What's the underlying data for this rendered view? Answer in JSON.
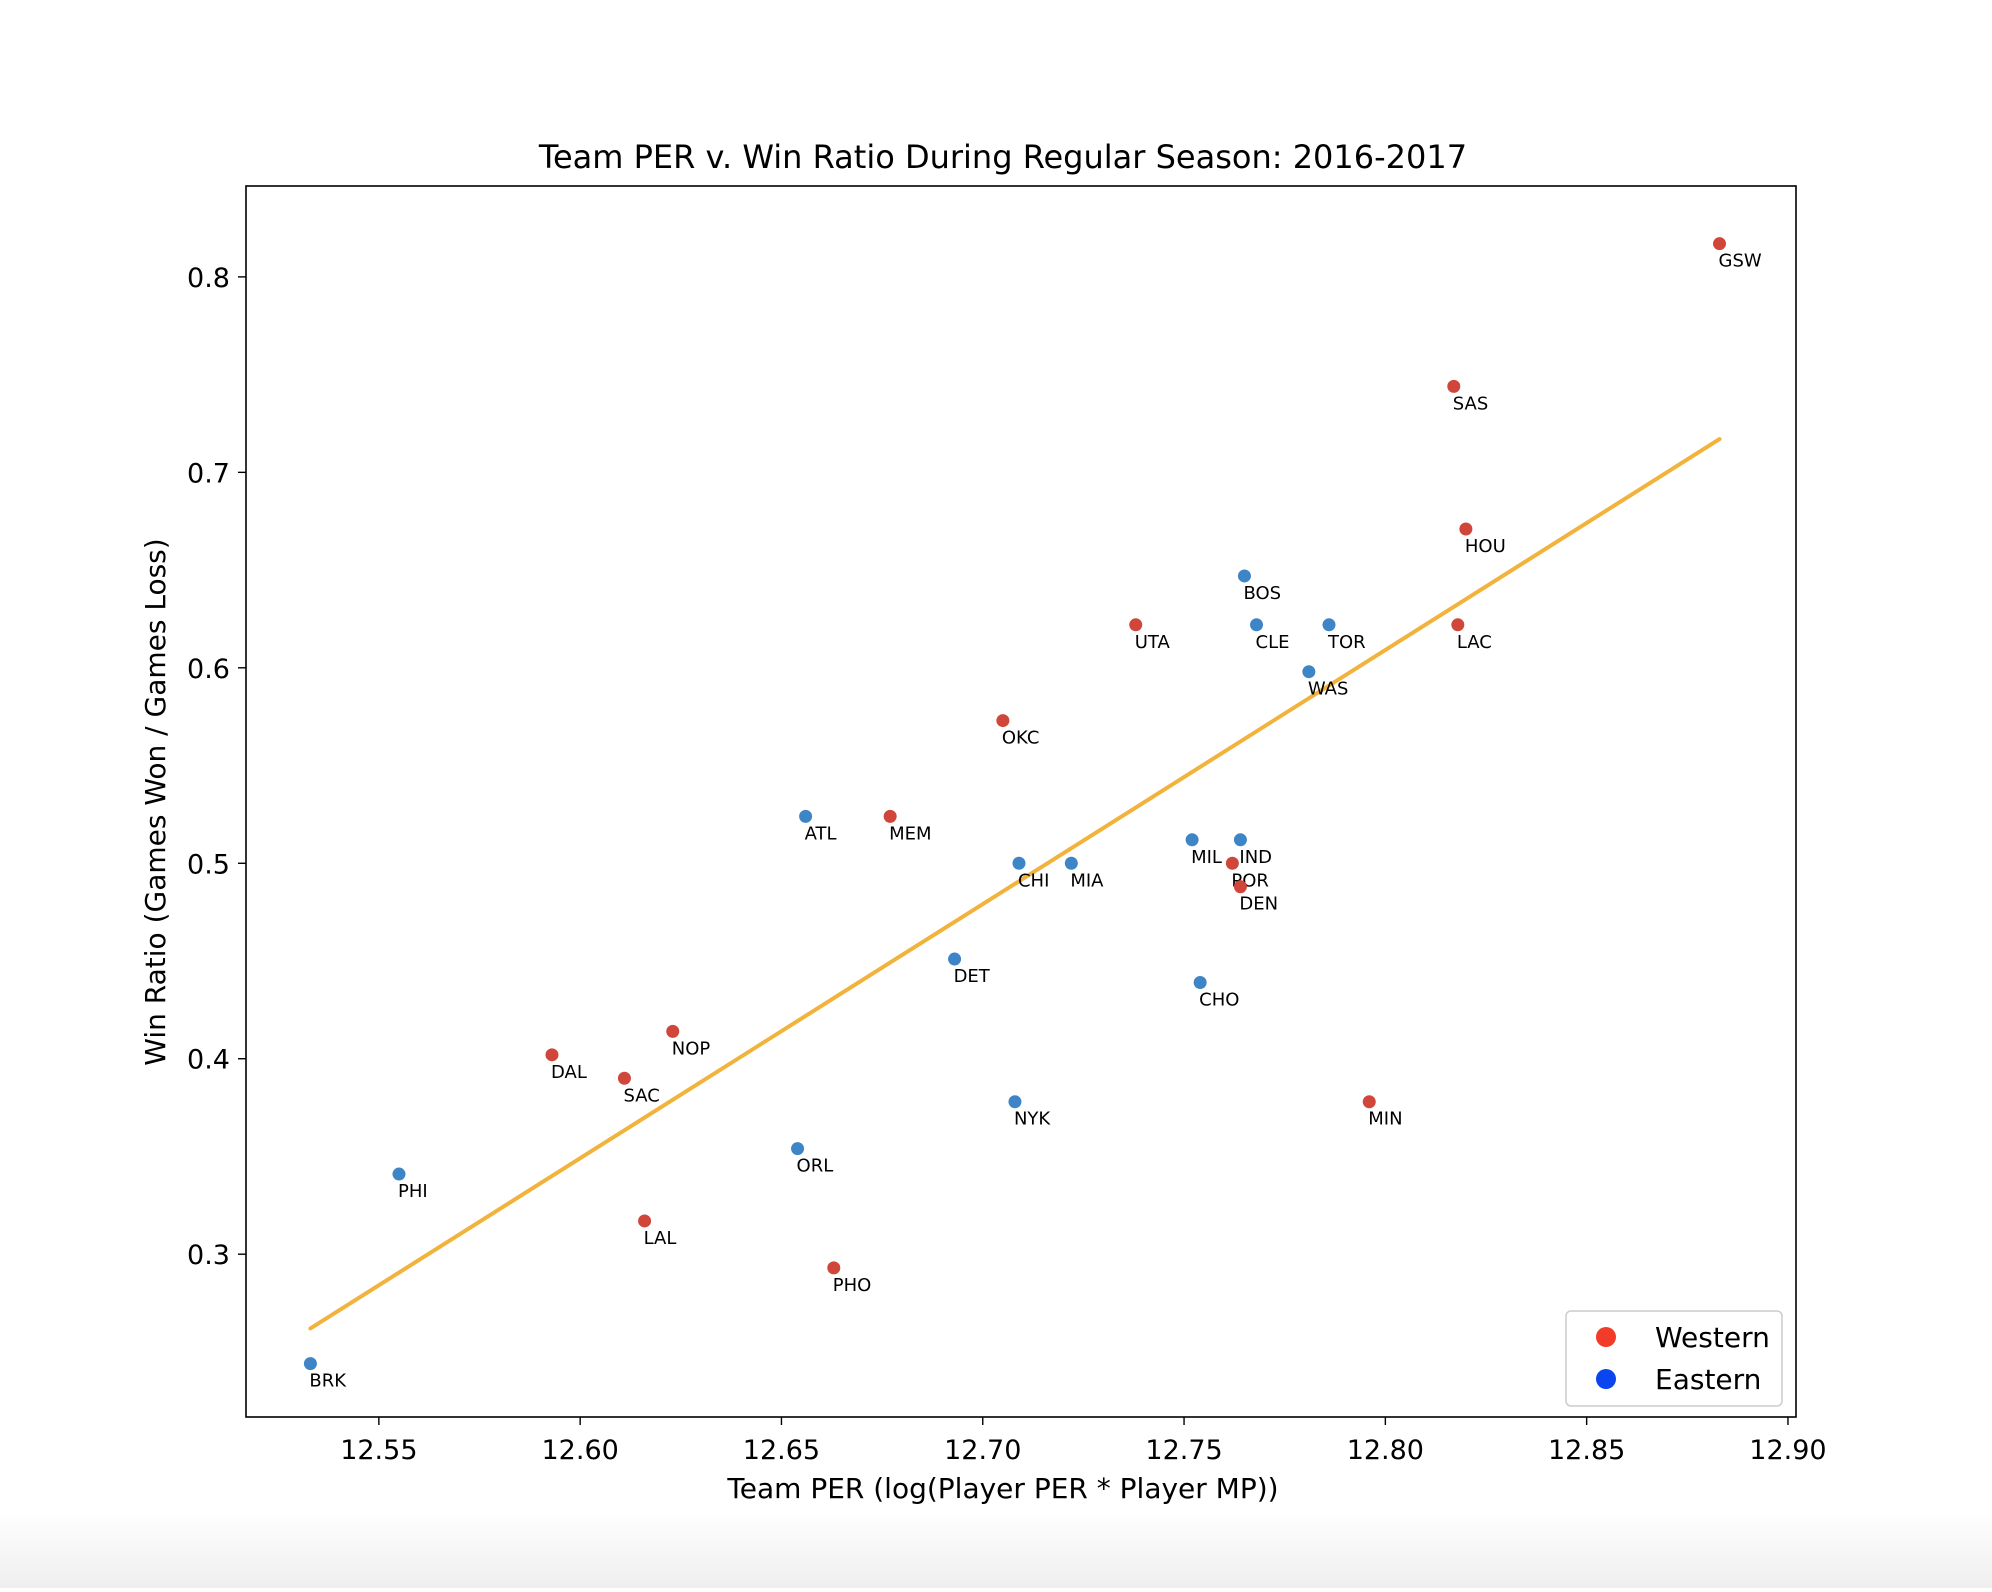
{
  "chart_data": {
    "type": "scatter",
    "title": "Team PER v. Win Ratio During Regular Season: 2016-2017",
    "xlabel": "Team PER (log(Player PER * Player MP))",
    "ylabel": "Win Ratio (Games Won / Games Loss)",
    "xlim": [
      12.517,
      12.902
    ],
    "ylim": [
      0.2167,
      0.8465
    ],
    "x_ticks": [
      "12.55",
      "12.60",
      "12.65",
      "12.70",
      "12.75",
      "12.80",
      "12.85",
      "12.90"
    ],
    "y_ticks": [
      "0.3",
      "0.4",
      "0.5",
      "0.6",
      "0.7",
      "0.8"
    ],
    "grid": false,
    "legend_position": "lower-right",
    "colors": {
      "Western": "#d0463a",
      "Eastern": "#3d85c6",
      "fit_line": "#f2b33c"
    },
    "legend": [
      {
        "label": "Western",
        "color": "#f03c28"
      },
      {
        "label": "Eastern",
        "color": "#0a46f0"
      }
    ],
    "series": [
      {
        "name": "Western",
        "points": [
          {
            "team": "GSW",
            "x": 12.883,
            "y": 0.817
          },
          {
            "team": "SAS",
            "x": 12.817,
            "y": 0.744
          },
          {
            "team": "HOU",
            "x": 12.82,
            "y": 0.671
          },
          {
            "team": "LAC",
            "x": 12.818,
            "y": 0.622
          },
          {
            "team": "UTA",
            "x": 12.738,
            "y": 0.622
          },
          {
            "team": "OKC",
            "x": 12.705,
            "y": 0.573
          },
          {
            "team": "MEM",
            "x": 12.677,
            "y": 0.524
          },
          {
            "team": "POR",
            "x": 12.762,
            "y": 0.5
          },
          {
            "team": "DEN",
            "x": 12.764,
            "y": 0.488
          },
          {
            "team": "NOP",
            "x": 12.623,
            "y": 0.414
          },
          {
            "team": "DAL",
            "x": 12.593,
            "y": 0.402
          },
          {
            "team": "SAC",
            "x": 12.611,
            "y": 0.39
          },
          {
            "team": "MIN",
            "x": 12.796,
            "y": 0.378
          },
          {
            "team": "LAL",
            "x": 12.616,
            "y": 0.317
          },
          {
            "team": "PHO",
            "x": 12.663,
            "y": 0.293
          }
        ]
      },
      {
        "name": "Eastern",
        "points": [
          {
            "team": "BOS",
            "x": 12.765,
            "y": 0.647
          },
          {
            "team": "CLE",
            "x": 12.768,
            "y": 0.622
          },
          {
            "team": "TOR",
            "x": 12.786,
            "y": 0.622
          },
          {
            "team": "WAS",
            "x": 12.781,
            "y": 0.598
          },
          {
            "team": "ATL",
            "x": 12.656,
            "y": 0.524
          },
          {
            "team": "MIL",
            "x": 12.752,
            "y": 0.512
          },
          {
            "team": "IND",
            "x": 12.764,
            "y": 0.512
          },
          {
            "team": "CHI",
            "x": 12.709,
            "y": 0.5
          },
          {
            "team": "MIA",
            "x": 12.722,
            "y": 0.5
          },
          {
            "team": "DET",
            "x": 12.693,
            "y": 0.451
          },
          {
            "team": "CHO",
            "x": 12.754,
            "y": 0.439
          },
          {
            "team": "NYK",
            "x": 12.708,
            "y": 0.378
          },
          {
            "team": "ORL",
            "x": 12.654,
            "y": 0.354
          },
          {
            "team": "PHI",
            "x": 12.555,
            "y": 0.341
          },
          {
            "team": "BRK",
            "x": 12.533,
            "y": 0.244
          }
        ]
      }
    ],
    "fit_line": {
      "x": [
        12.533,
        12.883
      ],
      "y": [
        0.262,
        0.717
      ]
    }
  }
}
